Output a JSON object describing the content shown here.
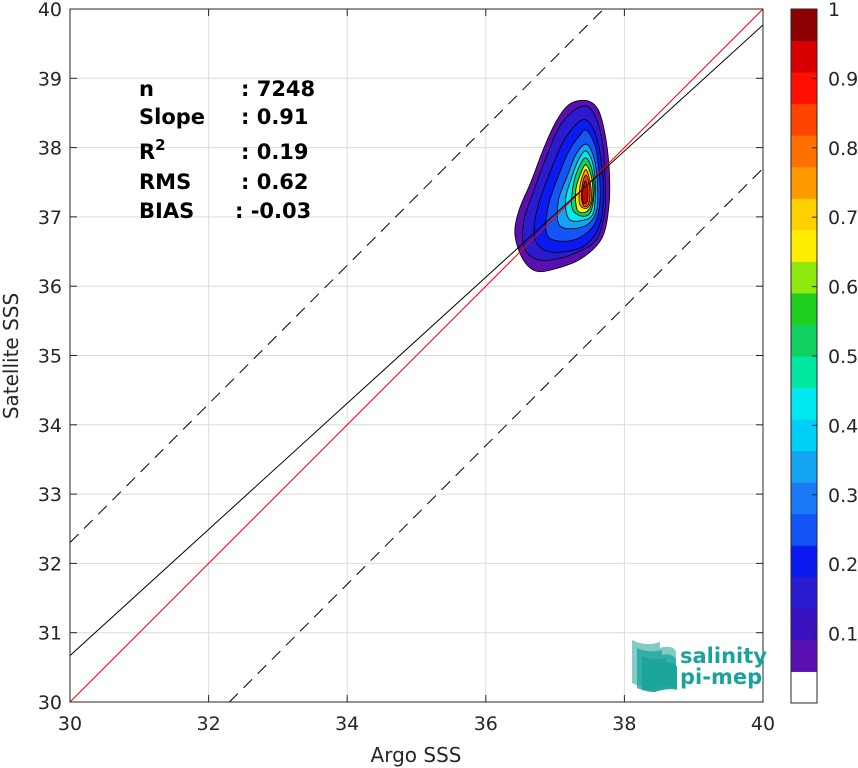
{
  "chart_data": {
    "type": "density-scatter",
    "xlabel": "Argo SSS",
    "ylabel": "Satellite SSS",
    "xlim": [
      30,
      40
    ],
    "ylim": [
      30,
      40
    ],
    "xticks": [
      "30",
      "32",
      "34",
      "36",
      "38",
      "40"
    ],
    "yticks": [
      "30",
      "31",
      "32",
      "33",
      "34",
      "35",
      "36",
      "37",
      "38",
      "39",
      "40"
    ],
    "grid": true,
    "stats": {
      "rows": [
        {
          "label": "n",
          "value": ": 7248"
        },
        {
          "label": "Slope",
          "value": ": 0.91"
        },
        {
          "label": "R",
          "sup": "2",
          "value": ": 0.19"
        },
        {
          "label": "RMS",
          "value": ": 0.62"
        },
        {
          "label": "BIAS",
          "value": ": -0.03"
        }
      ]
    },
    "lines": [
      {
        "name": "identity",
        "color": "#ff0000",
        "style": "solid",
        "slope": 1,
        "intercept": 0
      },
      {
        "name": "regression",
        "color": "#000000",
        "style": "solid",
        "slope": 0.91,
        "intercept": 3.37
      },
      {
        "name": "upper-bound",
        "color": "#000000",
        "style": "dashed",
        "slope": 1,
        "intercept": 2.3
      },
      {
        "name": "lower-bound",
        "color": "#000000",
        "style": "dashed",
        "slope": 1,
        "intercept": -2.3
      }
    ],
    "density": {
      "center": [
        37.4,
        37.35
      ],
      "levels": [
        0.05,
        0.1,
        0.15,
        0.2,
        0.25,
        0.3,
        0.35,
        0.4,
        0.45,
        0.5,
        0.55,
        0.6,
        0.65,
        0.7,
        0.75,
        0.8,
        0.85,
        0.9,
        0.95
      ],
      "contours": [
        {
          "level": 0.05,
          "color": "#5a0fb0",
          "points": [
            [
              37.45,
              38.68
            ],
            [
              37.62,
              38.55
            ],
            [
              37.72,
              38.2
            ],
            [
              37.78,
              37.7
            ],
            [
              37.78,
              37.2
            ],
            [
              37.68,
              36.7
            ],
            [
              37.38,
              36.4
            ],
            [
              37.0,
              36.25
            ],
            [
              36.72,
              36.22
            ],
            [
              36.53,
              36.4
            ],
            [
              36.42,
              36.75
            ],
            [
              36.48,
              37.1
            ],
            [
              36.65,
              37.5
            ],
            [
              36.82,
              37.95
            ],
            [
              37.0,
              38.35
            ],
            [
              37.2,
              38.62
            ]
          ]
        },
        {
          "level": 0.1,
          "color": "#2a1ad0",
          "points": [
            [
              37.45,
              38.6
            ],
            [
              37.58,
              38.45
            ],
            [
              37.68,
              38.1
            ],
            [
              37.72,
              37.6
            ],
            [
              37.72,
              37.1
            ],
            [
              37.6,
              36.68
            ],
            [
              37.3,
              36.48
            ],
            [
              36.95,
              36.38
            ],
            [
              36.7,
              36.4
            ],
            [
              36.55,
              36.58
            ],
            [
              36.55,
              36.95
            ],
            [
              36.7,
              37.4
            ],
            [
              36.88,
              37.88
            ],
            [
              37.05,
              38.28
            ],
            [
              37.25,
              38.52
            ]
          ]
        },
        {
          "level": 0.15,
          "color": "#0a1af0",
          "points": [
            [
              37.45,
              38.4
            ],
            [
              37.58,
              38.2
            ],
            [
              37.66,
              37.85
            ],
            [
              37.7,
              37.4
            ],
            [
              37.65,
              36.9
            ],
            [
              37.45,
              36.6
            ],
            [
              37.15,
              36.5
            ],
            [
              36.85,
              36.52
            ],
            [
              36.7,
              36.72
            ],
            [
              36.75,
              37.15
            ],
            [
              36.93,
              37.65
            ],
            [
              37.1,
              38.05
            ],
            [
              37.3,
              38.33
            ]
          ]
        },
        {
          "level": 0.2,
          "color": "#1456f5",
          "points": [
            [
              37.45,
              38.25
            ],
            [
              37.57,
              38.05
            ],
            [
              37.63,
              37.7
            ],
            [
              37.65,
              37.25
            ],
            [
              37.57,
              36.9
            ],
            [
              37.35,
              36.7
            ],
            [
              37.08,
              36.65
            ],
            [
              36.88,
              36.75
            ],
            [
              36.9,
              37.15
            ],
            [
              37.05,
              37.6
            ],
            [
              37.2,
              37.95
            ],
            [
              37.35,
              38.17
            ]
          ]
        },
        {
          "level": 0.3,
          "color": "#15a5f0",
          "points": [
            [
              37.45,
              38.05
            ],
            [
              37.56,
              37.85
            ],
            [
              37.61,
              37.5
            ],
            [
              37.6,
              37.1
            ],
            [
              37.48,
              36.9
            ],
            [
              37.25,
              36.83
            ],
            [
              37.05,
              36.9
            ],
            [
              37.05,
              37.25
            ],
            [
              37.18,
              37.6
            ],
            [
              37.3,
              37.9
            ]
          ]
        },
        {
          "level": 0.4,
          "color": "#00e8f0",
          "points": [
            [
              37.45,
              37.95
            ],
            [
              37.55,
              37.75
            ],
            [
              37.58,
              37.4
            ],
            [
              37.55,
              37.05
            ],
            [
              37.4,
              36.95
            ],
            [
              37.2,
              36.97
            ],
            [
              37.15,
              37.25
            ],
            [
              37.25,
              37.6
            ],
            [
              37.35,
              37.85
            ]
          ]
        },
        {
          "level": 0.5,
          "color": "#10d060",
          "points": [
            [
              37.45,
              37.85
            ],
            [
              37.54,
              37.65
            ],
            [
              37.56,
              37.32
            ],
            [
              37.5,
              37.05
            ],
            [
              37.35,
              37.02
            ],
            [
              37.24,
              37.15
            ],
            [
              37.27,
              37.5
            ],
            [
              37.36,
              37.75
            ]
          ]
        },
        {
          "level": 0.6,
          "color": "#ffee00",
          "points": [
            [
              37.45,
              37.75
            ],
            [
              37.53,
              37.55
            ],
            [
              37.54,
              37.25
            ],
            [
              37.46,
              37.08
            ],
            [
              37.32,
              37.1
            ],
            [
              37.3,
              37.4
            ],
            [
              37.38,
              37.65
            ]
          ]
        },
        {
          "level": 0.7,
          "color": "#ff9a00",
          "points": [
            [
              37.45,
              37.68
            ],
            [
              37.51,
              37.48
            ],
            [
              37.52,
              37.22
            ],
            [
              37.44,
              37.12
            ],
            [
              37.35,
              37.2
            ],
            [
              37.36,
              37.45
            ],
            [
              37.4,
              37.6
            ]
          ]
        },
        {
          "level": 0.8,
          "color": "#ff4400",
          "points": [
            [
              37.45,
              37.6
            ],
            [
              37.5,
              37.42
            ],
            [
              37.49,
              37.2
            ],
            [
              37.42,
              37.15
            ],
            [
              37.38,
              37.28
            ],
            [
              37.4,
              37.5
            ]
          ]
        },
        {
          "level": 0.9,
          "color": "#d80000",
          "points": [
            [
              37.44,
              37.52
            ],
            [
              37.47,
              37.38
            ],
            [
              37.46,
              37.22
            ],
            [
              37.41,
              37.2
            ],
            [
              37.39,
              37.32
            ],
            [
              37.41,
              37.45
            ]
          ]
        }
      ]
    },
    "colorbar": {
      "range": [
        0,
        1
      ],
      "ticks": [
        "0.1",
        "0.2",
        "0.3",
        "0.4",
        "0.5",
        "0.6",
        "0.7",
        "0.8",
        "0.9",
        "1"
      ],
      "bands": [
        "#ffffff",
        "#5a0fb0",
        "#3a12c0",
        "#2a1ad0",
        "#0a1af0",
        "#1456f5",
        "#1a7af5",
        "#15a5f0",
        "#00d0f8",
        "#00e8f0",
        "#00e8a0",
        "#10d060",
        "#20d020",
        "#90ea10",
        "#ffee00",
        "#ffd000",
        "#ff9a00",
        "#ff7000",
        "#ff4400",
        "#ff1000",
        "#d80000",
        "#8b0000"
      ]
    }
  },
  "logo": {
    "line1": "salinity",
    "line2": "pi-mep",
    "color": "#1aa39a"
  }
}
